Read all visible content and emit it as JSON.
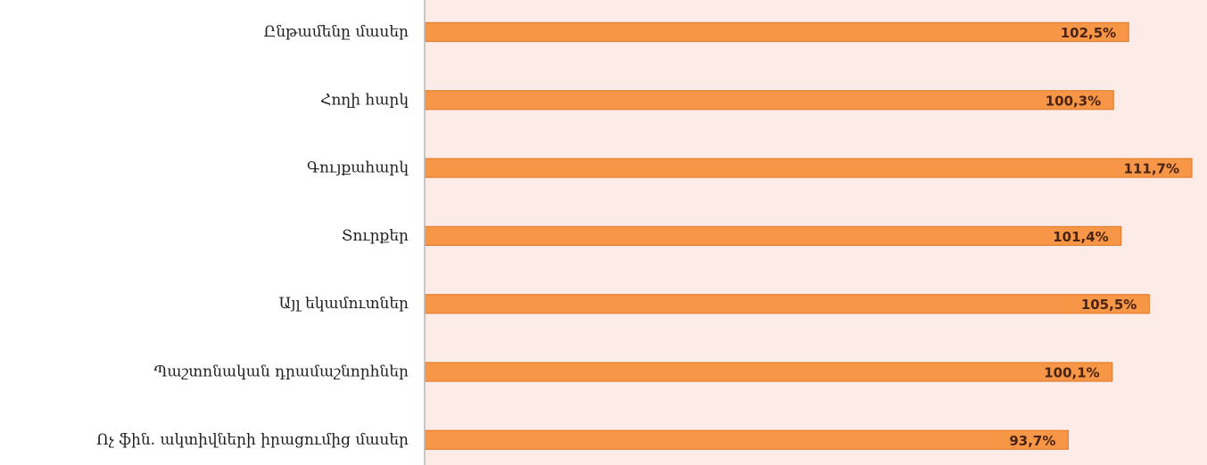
{
  "chart_data": {
    "type": "bar",
    "orientation": "horizontal",
    "categories": [
      "Ընթամենը մասեր",
      "Հողի հարկ",
      "Գույքահարկ",
      "Տուրքեր",
      "Այլ եկամուտներ",
      "Պաշտոնական դրամաշնորհներ",
      "Ոչ ֆին. ակտիվների իրացումից մասեր"
    ],
    "values": [
      102.5,
      100.3,
      111.7,
      101.4,
      105.5,
      100.1,
      93.7
    ],
    "value_labels": [
      "102,5%",
      "100,3%",
      "111,7%",
      "101,4%",
      "105,5%",
      "100,1%",
      "93,7%"
    ],
    "grid": false,
    "legend": "none",
    "colors": {
      "bar": "#f79646",
      "bar_border": "#e47e2e",
      "plot_background": "#fcebe6",
      "value_label": "#4a2410"
    }
  }
}
